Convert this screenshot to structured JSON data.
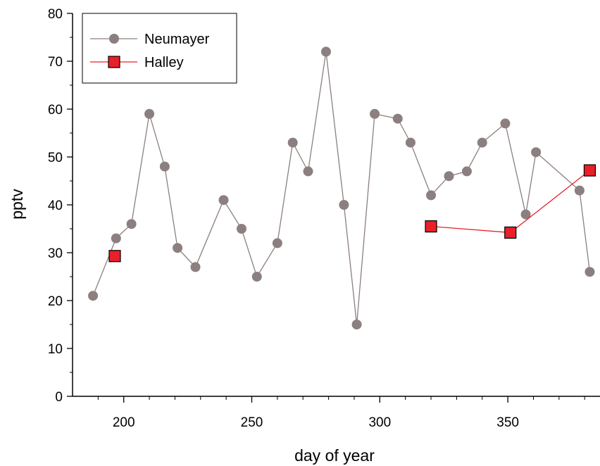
{
  "chart_data": {
    "type": "line",
    "xlabel": "day of year",
    "ylabel": "pptv",
    "xlim": [
      180,
      386
    ],
    "ylim": [
      0,
      80
    ],
    "x_ticks": [
      200,
      250,
      300,
      350
    ],
    "y_ticks": [
      0,
      10,
      20,
      30,
      40,
      50,
      60,
      70,
      80
    ],
    "grid": false,
    "legend_position": "top-left",
    "series": [
      {
        "name": "Neumayer",
        "color": "#8c7f7f",
        "marker": "circle",
        "x": [
          188,
          197,
          203,
          210,
          216,
          221,
          228,
          239,
          246,
          252,
          260,
          266,
          272,
          279,
          286,
          291,
          298,
          307,
          312,
          320,
          327,
          334,
          340,
          349,
          357,
          361,
          378,
          382
        ],
        "y": [
          21,
          33,
          36,
          59,
          48,
          31,
          27,
          41,
          35,
          25,
          32,
          53,
          47,
          72,
          40,
          15,
          59,
          58,
          53,
          42,
          46,
          47,
          53,
          57,
          38,
          51,
          43,
          26
        ]
      },
      {
        "name": "Halley",
        "color": "#e8202a",
        "marker": "square",
        "x": [
          196.5,
          320,
          351,
          382
        ],
        "y": [
          29.3,
          35.5,
          34.2,
          47.2
        ],
        "segments": [
          [
            1,
            2,
            3
          ]
        ]
      }
    ]
  }
}
